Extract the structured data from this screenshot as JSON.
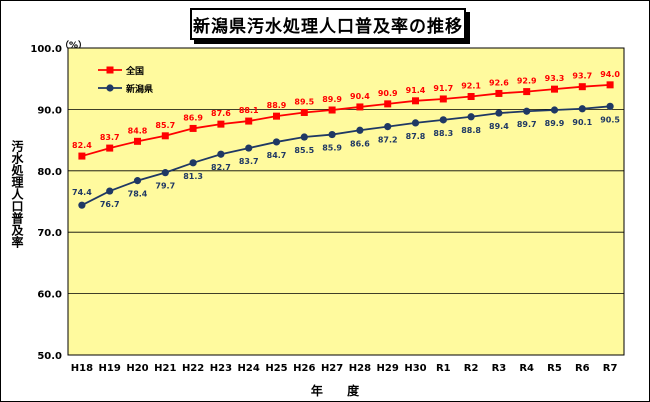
{
  "chart_data": {
    "type": "line",
    "title": "新潟県汚水処理人口普及率の推移",
    "xlabel": "年 度",
    "ylabel": "汚水処理人口普及率",
    "unit": "（%）",
    "categories": [
      "H18",
      "H19",
      "H20",
      "H21",
      "H22",
      "H23",
      "H24",
      "H25",
      "H26",
      "H27",
      "H28",
      "H29",
      "H30",
      "R1",
      "R2",
      "R3",
      "R4",
      "R5",
      "R6",
      "R7"
    ],
    "ylim": [
      50.0,
      100.0
    ],
    "yticks": [
      "50.0",
      "60.0",
      "70.0",
      "80.0",
      "90.0",
      "100.0"
    ],
    "grid": true,
    "legend_position": "top-left",
    "series": [
      {
        "name": "全国",
        "color": "#ff0000",
        "marker": "square",
        "values": [
          82.4,
          83.7,
          84.8,
          85.7,
          86.9,
          87.6,
          88.1,
          88.9,
          89.5,
          89.9,
          90.4,
          90.9,
          91.4,
          91.7,
          92.1,
          92.6,
          92.9,
          93.3,
          93.7,
          94.0
        ]
      },
      {
        "name": "新潟県",
        "color": "#1f3864",
        "marker": "circle",
        "values": [
          74.4,
          76.7,
          78.4,
          79.7,
          81.3,
          82.7,
          83.7,
          84.7,
          85.5,
          85.9,
          86.6,
          87.2,
          87.8,
          88.3,
          88.8,
          89.4,
          89.7,
          89.9,
          90.1,
          90.5
        ]
      }
    ],
    "plot_background": "#fffa9e"
  }
}
